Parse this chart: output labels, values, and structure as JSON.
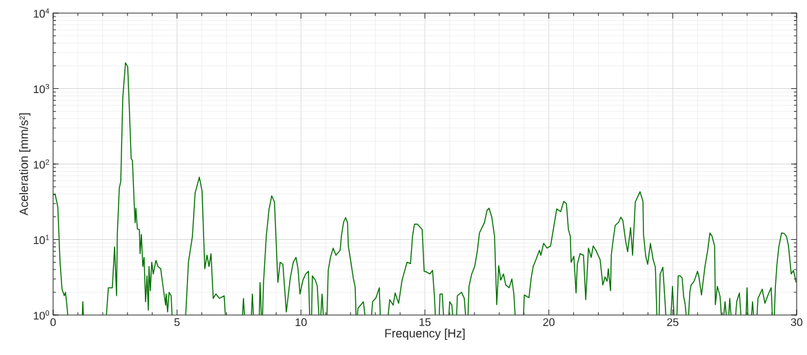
{
  "chart_data": {
    "type": "line",
    "xlabel": "Frequency [Hz]",
    "ylabel": "Aceleration [mm/s²]",
    "log": "y",
    "grid": true,
    "line_style": "solid",
    "xlim": [
      0,
      30
    ],
    "ylim": [
      1,
      10000
    ],
    "xticks": [
      0,
      5,
      10,
      15,
      20,
      25,
      30
    ],
    "yticks": [
      {
        "value": 1,
        "label": "10$^{0}$"
      },
      {
        "value": 10,
        "label": "10$^{1}$"
      },
      {
        "value": 100,
        "label": "10$^{2}$"
      },
      {
        "value": 1000,
        "label": "10$^{3}$"
      },
      {
        "value": 10000,
        "label": "10$^{4}$"
      }
    ],
    "series": [
      {
        "color": "#007000",
        "x": [
          0,
          0.08,
          0.19,
          0.28,
          0.36,
          0.45,
          0.5,
          0.56,
          0.59,
          0.62,
          1.18,
          1.2,
          1.22,
          1.25,
          2.15,
          2.23,
          2.39,
          2.48,
          2.56,
          2.59,
          2.67,
          2.73,
          2.81,
          2.92,
          3.01,
          3.06,
          3.15,
          3.2,
          3.28,
          3.31,
          3.34,
          3.4,
          3.48,
          3.51,
          3.56,
          3.62,
          3.67,
          3.73,
          3.79,
          3.84,
          3.87,
          3.92,
          3.98,
          4.04,
          4.15,
          4.23,
          4.34,
          4.45,
          4.54,
          4.56,
          4.62,
          4.68,
          4.76,
          4.8,
          4.85,
          5.35,
          5.46,
          5.62,
          5.73,
          5.9,
          6.01,
          6.12,
          6.21,
          6.29,
          6.37,
          6.46,
          6.57,
          6.71,
          6.9,
          6.95,
          7.0,
          7.64,
          7.68,
          7.72,
          7.75,
          8.0,
          8.04,
          8.08,
          8.2,
          8.32,
          8.35,
          8.4,
          8.42,
          8.45,
          8.49,
          8.6,
          8.71,
          8.82,
          8.93,
          9.07,
          9.16,
          9.27,
          9.41,
          9.57,
          9.69,
          9.8,
          9.88,
          9.96,
          10.08,
          10.19,
          10.3,
          10.35,
          10.4,
          10.43,
          10.46,
          10.58,
          10.66,
          10.72,
          10.75,
          10.8,
          10.85,
          10.9,
          10.95,
          11.05,
          11.1,
          11.19,
          11.3,
          11.41,
          11.58,
          11.63,
          11.72,
          11.8,
          11.88,
          11.91,
          12.0,
          12.11,
          12.19,
          12.22,
          12.25,
          12.28,
          12.3,
          12.52,
          12.58,
          12.62,
          12.85,
          12.89,
          13.03,
          13.16,
          13.2,
          13.25,
          13.52,
          13.58,
          13.72,
          13.8,
          13.94,
          14.08,
          14.28,
          14.42,
          14.5,
          14.58,
          14.7,
          14.89,
          14.97,
          15.08,
          15.2,
          15.31,
          15.39,
          15.42,
          15.45,
          15.58,
          15.61,
          15.7,
          15.75,
          15.8,
          15.97,
          16.0,
          16.09,
          16.12,
          16.15,
          16.28,
          16.31,
          16.48,
          16.59,
          16.64,
          16.68,
          16.74,
          16.78,
          16.89,
          17.01,
          17.12,
          17.2,
          17.4,
          17.51,
          17.59,
          17.7,
          17.81,
          17.9,
          17.98,
          18.06,
          18.17,
          18.26,
          18.4,
          18.51,
          18.59,
          18.64,
          18.66,
          18.98,
          19.01,
          19.2,
          19.29,
          19.37,
          19.48,
          19.62,
          19.68,
          19.79,
          19.93,
          20.07,
          20.21,
          20.32,
          20.48,
          20.6,
          20.71,
          20.79,
          20.87,
          20.9,
          21.01,
          21.1,
          21.15,
          21.26,
          21.4,
          21.49,
          21.6,
          21.71,
          21.79,
          21.9,
          22.07,
          22.18,
          22.27,
          22.35,
          22.4,
          22.49,
          22.52,
          22.6,
          22.68,
          22.82,
          22.91,
          22.99,
          23.1,
          23.18,
          23.3,
          23.38,
          23.49,
          23.68,
          23.8,
          23.82,
          23.91,
          23.99,
          24.1,
          24.21,
          24.3,
          24.36,
          24.39,
          24.45,
          24.49,
          24.6,
          24.69,
          24.72,
          24.75,
          24.93,
          24.99,
          25.05,
          25.08,
          25.17,
          25.22,
          25.3,
          25.38,
          25.44,
          25.5,
          25.54,
          25.58,
          25.64,
          25.69,
          25.74,
          25.83,
          25.88,
          26.0,
          26.05,
          26.16,
          26.3,
          26.41,
          26.5,
          26.58,
          26.69,
          26.72,
          26.8,
          26.91,
          26.96,
          27.0,
          27.06,
          27.11,
          27.16,
          27.2,
          27.26,
          27.3,
          27.35,
          27.4,
          27.54,
          27.58,
          27.69,
          27.75,
          27.8,
          27.96,
          28.0,
          28.03,
          28.05,
          28.18,
          28.22,
          28.26,
          28.3,
          28.4,
          28.44,
          28.61,
          28.72,
          28.86,
          28.97,
          29.02,
          29.05,
          29.1,
          29.14,
          29.2,
          29.28,
          29.39,
          29.5,
          29.59,
          29.67,
          29.78,
          29.87,
          29.98
        ],
        "values": [
          39,
          40,
          27,
          5,
          2.2,
          1.8,
          2.0,
          1.3,
          1,
          null,
          1,
          1.5,
          1,
          null,
          1,
          2.3,
          2.3,
          8,
          1.8,
          11.7,
          48,
          59,
          740,
          2200,
          1950,
          740,
          118,
          112,
          25.5,
          16.7,
          26,
          13.8,
          13.6,
          6.5,
          11.7,
          4.4,
          5.8,
          1.5,
          3.3,
          1.16,
          4.4,
          2.1,
          5.0,
          3.5,
          5.3,
          4.4,
          4.1,
          2.2,
          1.35,
          1.9,
          1.1,
          2.0,
          1.8,
          1,
          null,
          1,
          5,
          11,
          41.5,
          67,
          44,
          4.1,
          6.2,
          4.4,
          6.5,
          1.66,
          1.9,
          1.66,
          1.8,
          1,
          null,
          1,
          1.66,
          1,
          null,
          1,
          1.9,
          1,
          null,
          1,
          2.7,
          1,
          null,
          1,
          2.7,
          11,
          25,
          38,
          31.5,
          2.7,
          5,
          4.7,
          1.1,
          3.1,
          5,
          5.8,
          4.1,
          1.9,
          2.9,
          3.5,
          3.8,
          1,
          null,
          1,
          3.3,
          2.9,
          2.4,
          1,
          null,
          1,
          1.9,
          1,
          null,
          1,
          3.9,
          5.8,
          7.7,
          6.2,
          7.2,
          11,
          17,
          19.5,
          16.7,
          8.2,
          5.4,
          3.1,
          2.3,
          1,
          null,
          1,
          1.23,
          1.5,
          1,
          null,
          1,
          1.5,
          1.7,
          2.3,
          1,
          null,
          1,
          1.6,
          1.35,
          1.96,
          1.43,
          2.9,
          5,
          4.8,
          11,
          16,
          16,
          13.6,
          3.8,
          3.7,
          3.5,
          3.9,
          1.66,
          1,
          null,
          1,
          1.9,
          1.9,
          1,
          null,
          1,
          1.5,
          1.35,
          1,
          null,
          1,
          1.8,
          2.0,
          1.66,
          1,
          null,
          1,
          2.4,
          3.5,
          4.4,
          7.2,
          12.2,
          16.7,
          24.5,
          26,
          19.8,
          11,
          1.37,
          4.5,
          2.9,
          3.5,
          2.5,
          2.3,
          3.0,
          1.9,
          1,
          null,
          1,
          1.84,
          1.7,
          3.1,
          4.4,
          5.4,
          7.2,
          6.2,
          8.9,
          7.7,
          8.2,
          15.4,
          25.5,
          23.4,
          32,
          30,
          13.6,
          11,
          5,
          6,
          1.96,
          4.7,
          6.5,
          6.2,
          1.6,
          7.7,
          5.8,
          8.2,
          7.2,
          5.4,
          2.5,
          3.2,
          2.8,
          4.1,
          2.1,
          6.2,
          10.1,
          15.4,
          17,
          19.8,
          17.8,
          9.5,
          6.9,
          14.4,
          6.2,
          31.5,
          43,
          32,
          11.7,
          6,
          4.7,
          8.9,
          5.4,
          4.3,
          1,
          null,
          1,
          3.45,
          4.3,
          1.5,
          1,
          null,
          1,
          2.4,
          1,
          null,
          1,
          3.3,
          3.3,
          3.1,
          1.76,
          1.4,
          1,
          null,
          1,
          2.0,
          2.5,
          2.7,
          2.9,
          3.8,
          3.3,
          1.84,
          4.4,
          7.2,
          12.2,
          11.2,
          8.2,
          1.37,
          2.4,
          1.76,
          1,
          null,
          1,
          1.5,
          1,
          null,
          1,
          1.66,
          1,
          null,
          1,
          1.5,
          1.96,
          1,
          null,
          1,
          2.3,
          1,
          null,
          1,
          1.5,
          1,
          null,
          1,
          1.66,
          2.2,
          1.43,
          1.9,
          2.3,
          1,
          null,
          1,
          2.3,
          4.5,
          8.0,
          12.2,
          12,
          11,
          8.2,
          3.5,
          3.9,
          2.7
        ]
      }
    ]
  }
}
